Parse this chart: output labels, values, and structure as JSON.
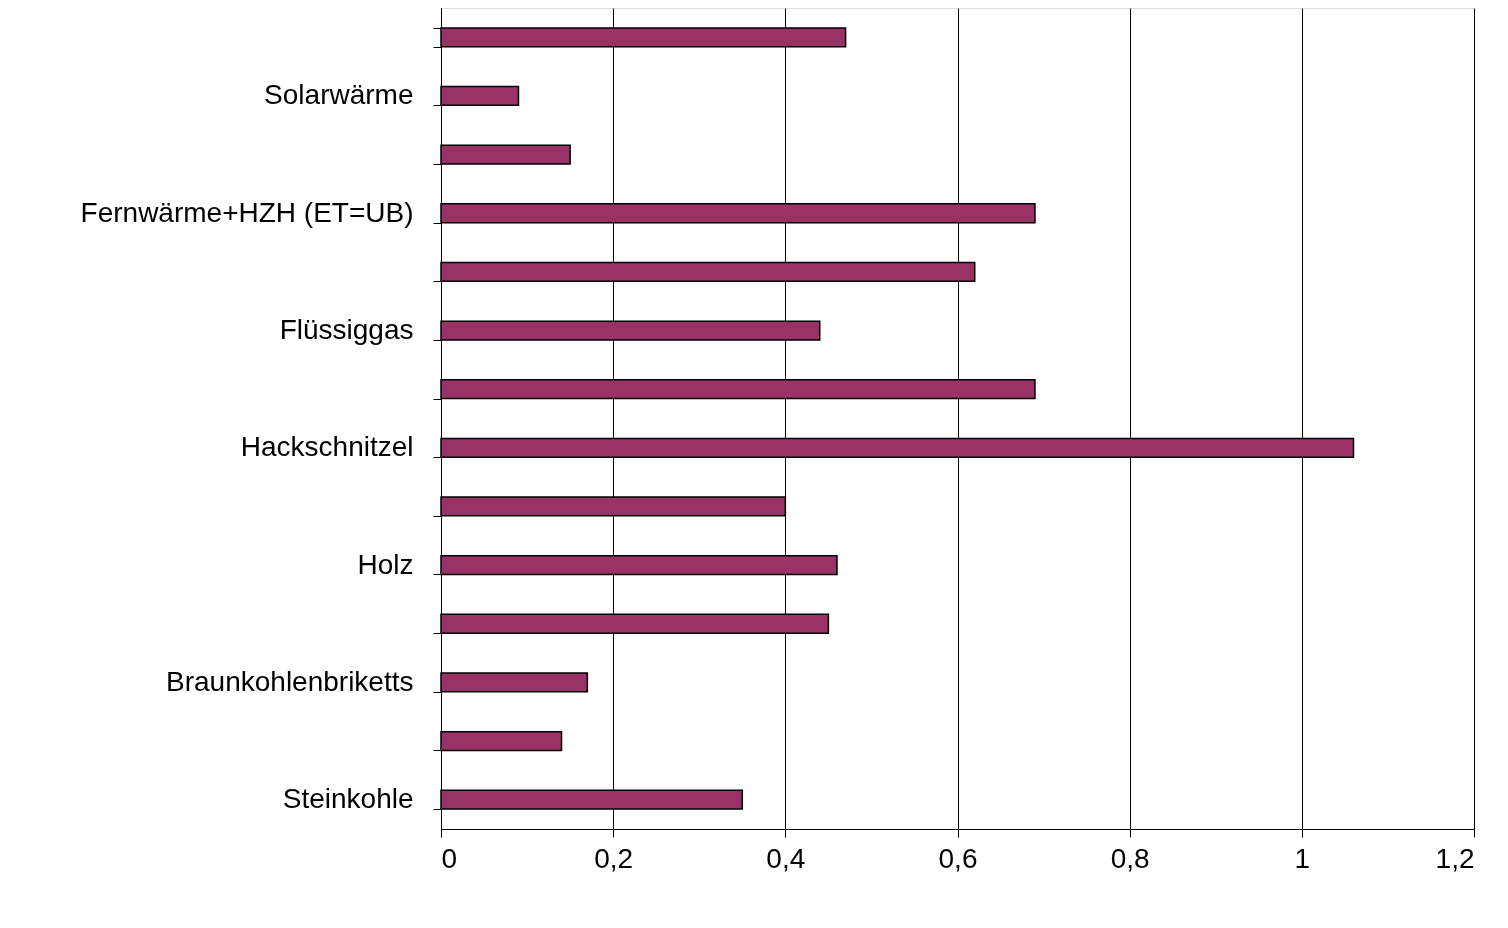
{
  "chart_data": {
    "type": "bar",
    "orientation": "horizontal",
    "categories": [
      null,
      "Solarwärme",
      null,
      "Fernwärme+HZH (ET=UB)",
      null,
      "Flüssiggas",
      null,
      "Hackschnitzel",
      null,
      "Holz",
      null,
      "Braunkohlenbriketts",
      null,
      "Steinkohle"
    ],
    "values": [
      0.47,
      0.09,
      0.15,
      0.69,
      0.62,
      0.44,
      0.69,
      1.06,
      0.4,
      0.46,
      0.45,
      0.17,
      0.14,
      0.35
    ],
    "color": "#993366",
    "xlim": [
      0,
      1.2
    ],
    "xticks": [
      0,
      {
        "value": 0.2,
        "label": "0,2"
      },
      {
        "value": 0.4,
        "label": "0,4"
      },
      {
        "value": 0.6,
        "label": "0,6"
      },
      {
        "value": 0.8,
        "label": "0,8"
      },
      1,
      {
        "value": 1.2,
        "label": "1,2"
      }
    ],
    "grid": "x"
  }
}
